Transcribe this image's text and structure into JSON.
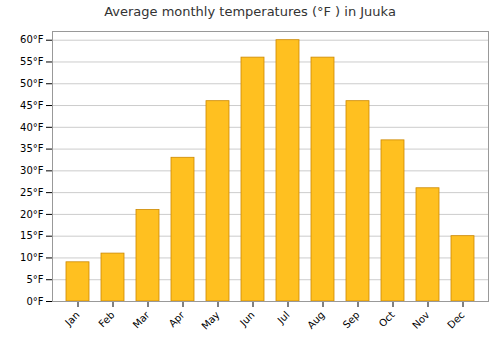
{
  "chart_data": {
    "type": "bar",
    "title": "Average monthly temperatures (°F ) in Juuka",
    "categories": [
      "Jan",
      "Feb",
      "Mar",
      "Apr",
      "May",
      "Jun",
      "Jul",
      "Aug",
      "Sep",
      "Oct",
      "Nov",
      "Dec"
    ],
    "values": [
      9,
      11,
      21,
      33,
      46,
      56,
      60,
      56,
      46,
      37,
      26,
      15
    ],
    "color": "#FFC020",
    "ylim": [
      0,
      62
    ],
    "yticks": [
      {
        "value": 0,
        "label": "0°F"
      },
      {
        "value": 5,
        "label": "5°F"
      },
      {
        "value": 10,
        "label": "10°F"
      },
      {
        "value": 15,
        "label": "15°F"
      },
      {
        "value": 20,
        "label": "20°F"
      },
      {
        "value": 25,
        "label": "25°F"
      },
      {
        "value": 30,
        "label": "30°F"
      },
      {
        "value": 35,
        "label": "35°F"
      },
      {
        "value": 40,
        "label": "40°F"
      },
      {
        "value": 45,
        "label": "45°F"
      },
      {
        "value": 50,
        "label": "50°F"
      },
      {
        "value": 55,
        "label": "55°F"
      },
      {
        "value": 60,
        "label": "60°F"
      }
    ],
    "grid": true
  }
}
